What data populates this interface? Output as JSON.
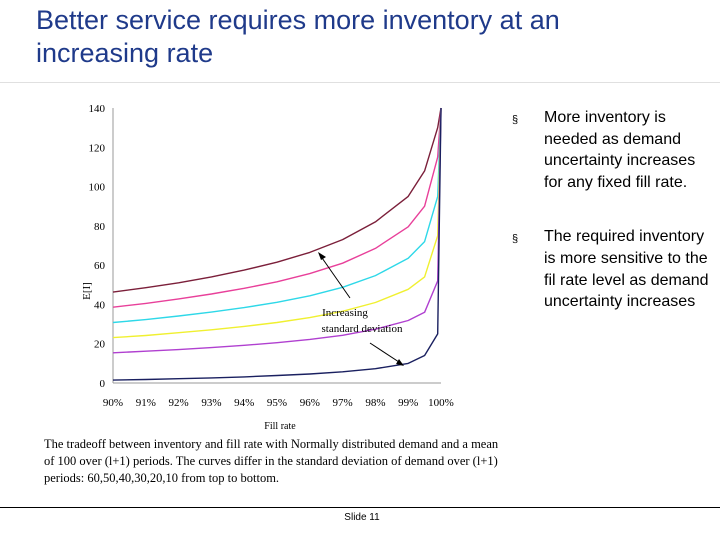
{
  "slide": {
    "title": "Better service requires more inventory at an increasing rate",
    "slide_number": "Slide 11"
  },
  "bullets": [
    {
      "marker": "§",
      "text": "More inventory is needed as demand uncertainty increases for any fixed fill rate."
    },
    {
      "marker": "§",
      "text": "The required inventory is more sensitive to the fil rate level as demand uncertainty increases"
    }
  ],
  "caption": "The tradeoff between inventory and fill rate with Normally distributed demand and a mean of 100 over (l+1) periods.  The curves differ in the standard deviation of demand over (l+1) periods: 60,50,40,30,20,10 from top to bottom.",
  "chart_data": {
    "type": "line",
    "title": "",
    "xlabel": "Fill rate",
    "ylabel": "E[I]",
    "x_tick_labels": [
      "90%",
      "91%",
      "92%",
      "93%",
      "94%",
      "95%",
      "96%",
      "97%",
      "98%",
      "99%",
      "100%"
    ],
    "xlim": [
      0.9,
      1.0
    ],
    "ylim": [
      0,
      140
    ],
    "y_ticks": [
      0,
      20,
      40,
      60,
      80,
      100,
      120,
      140
    ],
    "annotations": [
      {
        "text": "Increasing",
        "line2": "standard deviation"
      }
    ],
    "x": [
      0.9,
      0.91,
      0.92,
      0.93,
      0.94,
      0.95,
      0.96,
      0.97,
      0.98,
      0.99,
      0.995,
      0.999,
      1.0
    ],
    "series": [
      {
        "name": "sigma 60",
        "color": "#7b1f3a",
        "values": [
          46.3,
          48.5,
          51,
          54,
          57.5,
          61.5,
          66.5,
          73,
          82,
          95,
          108,
          130,
          140
        ]
      },
      {
        "name": "sigma 50",
        "color": "#e8409a",
        "values": [
          38.6,
          40.5,
          42.8,
          45.3,
          48.2,
          51.5,
          55.7,
          61,
          68.5,
          79.5,
          90,
          115,
          140
        ]
      },
      {
        "name": "sigma 40",
        "color": "#2ed8e8",
        "values": [
          30.8,
          32.3,
          34.1,
          36.1,
          38.4,
          41.1,
          44.4,
          48.7,
          54.7,
          63.5,
          72,
          95,
          140
        ]
      },
      {
        "name": "sigma 30",
        "color": "#f0f030",
        "values": [
          23.1,
          24.2,
          25.6,
          27.1,
          28.8,
          30.8,
          33.3,
          36.5,
          41,
          47.7,
          54,
          75,
          140
        ]
      },
      {
        "name": "sigma 20",
        "color": "#b040d0",
        "values": [
          15.4,
          16.2,
          17,
          18,
          19.2,
          20.5,
          22.2,
          24.3,
          27.4,
          31.8,
          36,
          52,
          140
        ]
      },
      {
        "name": "sigma 10",
        "color": "#1a2060",
        "values": [
          1.5,
          1.8,
          2.2,
          2.6,
          3.1,
          3.8,
          4.6,
          5.7,
          7.3,
          10,
          14,
          25,
          140
        ]
      }
    ]
  }
}
